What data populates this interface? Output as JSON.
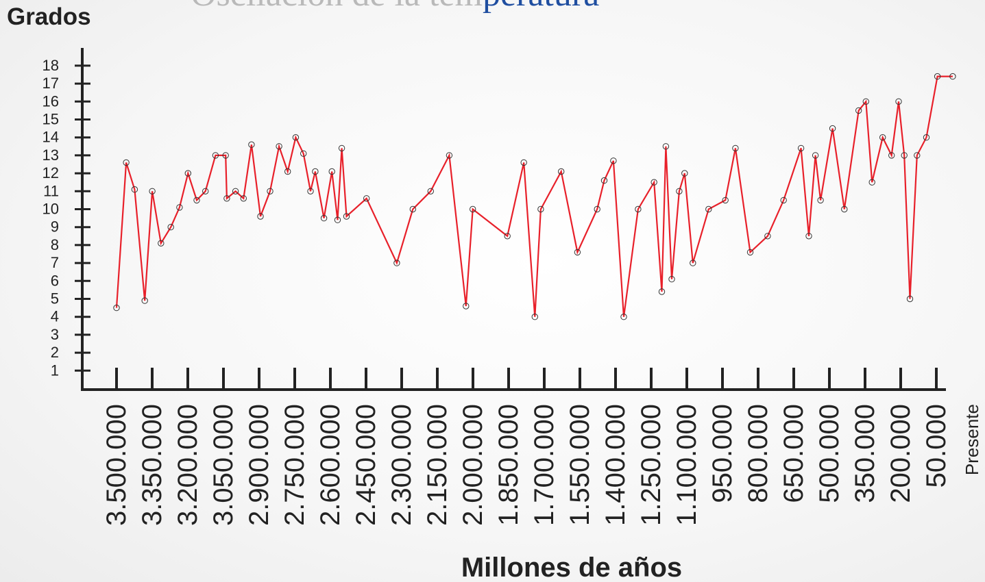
{
  "title_parts": [
    "Oscilación de la tem",
    "peratura"
  ],
  "title_colors": [
    "#b9b9b9",
    "#1f4ea0"
  ],
  "chart_data": {
    "type": "line",
    "ylabel": "Grados",
    "xlabel": "Millones de años",
    "yticks": [
      "1",
      "2",
      "3",
      "4",
      "5",
      "6",
      "7",
      "8",
      "9",
      "10",
      "11",
      "12",
      "13",
      "14",
      "15",
      "16",
      "17",
      "18"
    ],
    "ylim": [
      0,
      18
    ],
    "xticks": [
      "3.500.000",
      "3.350.000",
      "3.200.000",
      "3.050.000",
      "2.900.000",
      "2.750.000",
      "2.600.000",
      "2.450.000",
      "2.300.000",
      "2.150.000",
      "2.000.000",
      "1.850.000",
      "1.700.000",
      "1.550.000",
      "1.400.000",
      "1.250.000",
      "1.100.000",
      "950.000",
      "800.000",
      "650.000",
      "500.000",
      "350.000",
      "200.000",
      "50.000",
      "Presente"
    ],
    "x_unit": "years ago",
    "xlim": [
      3500000,
      -100000
    ],
    "line_color": "#e8202a",
    "marker_color": "#333333",
    "grid": false,
    "x": [
      3500000,
      3459000,
      3423000,
      3380000,
      3348000,
      3311000,
      3269000,
      3232000,
      3196000,
      3159000,
      3122000,
      3079000,
      3036000,
      3031000,
      2994000,
      2960000,
      2926000,
      2888000,
      2847000,
      2809000,
      2772000,
      2738000,
      2705000,
      2675000,
      2655000,
      2618000,
      2584000,
      2560000,
      2542000,
      2522000,
      2437000,
      2308000,
      2240000,
      2164000,
      2085000,
      2014000,
      1985000,
      1838000,
      1768000,
      1721000,
      1696000,
      1609000,
      1540000,
      1456000,
      1426000,
      1387000,
      1343000,
      1282000,
      1214000,
      1181000,
      1164000,
      1139000,
      1107000,
      1084000,
      1049000,
      982000,
      911000,
      868000,
      805000,
      731000,
      663000,
      589000,
      556000,
      528000,
      506000,
      455000,
      405000,
      344000,
      313000,
      287000,
      242000,
      204000,
      174000,
      150000,
      126000,
      96000,
      56000,
      9000,
      -56000
    ],
    "y": [
      4.5,
      12.6,
      11.1,
      4.9,
      11.0,
      8.1,
      9.0,
      10.1,
      12.0,
      10.5,
      11.0,
      13.0,
      13.0,
      10.6,
      11.0,
      10.6,
      13.6,
      9.6,
      11.0,
      13.5,
      12.1,
      14.0,
      13.1,
      11.0,
      12.1,
      9.5,
      12.1,
      9.4,
      13.4,
      9.6,
      10.6,
      7.0,
      10.0,
      11.0,
      13.0,
      4.6,
      10.0,
      8.5,
      12.6,
      4.0,
      10.0,
      12.1,
      7.6,
      10.0,
      11.6,
      12.7,
      4.0,
      10.0,
      11.5,
      5.4,
      13.5,
      6.1,
      11.0,
      12.0,
      7.0,
      10.0,
      10.5,
      13.4,
      7.6,
      8.5,
      10.5,
      13.4,
      8.5,
      13.0,
      10.5,
      14.5,
      10.0,
      15.5,
      16.0,
      11.5,
      14.0,
      13.0,
      16.0,
      13.0,
      5.0,
      13.0,
      14.0,
      17.4,
      17.4
    ]
  }
}
